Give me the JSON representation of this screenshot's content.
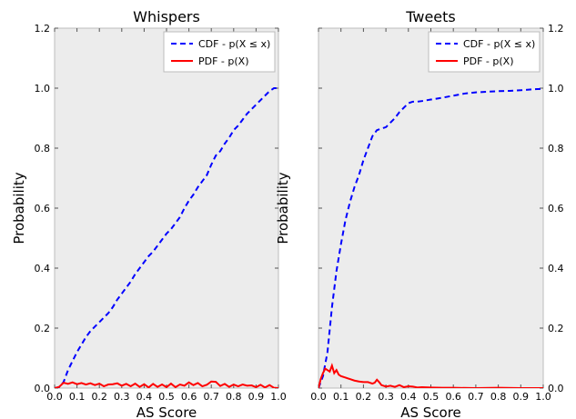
{
  "chart_data": [
    {
      "type": "line",
      "title": "Whispers",
      "xlabel": "AS Score",
      "ylabel": "Probability",
      "xlim": [
        0.0,
        1.0
      ],
      "ylim": [
        0.0,
        1.2
      ],
      "xticks": [
        "0.0",
        "0.1",
        "0.2",
        "0.3",
        "0.4",
        "0.5",
        "0.6",
        "0.7",
        "0.8",
        "0.9",
        "1.0"
      ],
      "yticks": [
        "0.0",
        "0.2",
        "0.4",
        "0.6",
        "0.8",
        "1.0",
        "1.2"
      ],
      "legend_position": "top-right",
      "grid": false,
      "series": [
        {
          "name": "CDF - p(X ≤ x)",
          "style": "dashed",
          "color": "#0000ff",
          "x": [
            0.0,
            0.02,
            0.04,
            0.06,
            0.08,
            0.1,
            0.12,
            0.14,
            0.16,
            0.18,
            0.2,
            0.22,
            0.24,
            0.26,
            0.28,
            0.3,
            0.32,
            0.34,
            0.36,
            0.38,
            0.4,
            0.42,
            0.44,
            0.46,
            0.48,
            0.5,
            0.52,
            0.54,
            0.56,
            0.58,
            0.6,
            0.62,
            0.64,
            0.66,
            0.68,
            0.7,
            0.72,
            0.74,
            0.76,
            0.78,
            0.8,
            0.82,
            0.84,
            0.86,
            0.88,
            0.9,
            0.92,
            0.94,
            0.96,
            0.98,
            1.0
          ],
          "y": [
            0.0,
            0.003,
            0.02,
            0.06,
            0.09,
            0.12,
            0.145,
            0.17,
            0.19,
            0.205,
            0.22,
            0.235,
            0.25,
            0.27,
            0.295,
            0.315,
            0.335,
            0.355,
            0.38,
            0.4,
            0.42,
            0.44,
            0.455,
            0.475,
            0.495,
            0.515,
            0.53,
            0.55,
            0.57,
            0.6,
            0.625,
            0.645,
            0.67,
            0.69,
            0.71,
            0.745,
            0.775,
            0.79,
            0.815,
            0.835,
            0.86,
            0.875,
            0.895,
            0.915,
            0.93,
            0.945,
            0.96,
            0.975,
            0.99,
            1.0,
            1.0
          ]
        },
        {
          "name": "PDF - p(X)",
          "style": "solid",
          "color": "#ff0000",
          "x": [
            0.0,
            0.02,
            0.04,
            0.06,
            0.08,
            0.1,
            0.12,
            0.14,
            0.16,
            0.18,
            0.2,
            0.22,
            0.24,
            0.26,
            0.28,
            0.3,
            0.32,
            0.34,
            0.36,
            0.38,
            0.4,
            0.42,
            0.44,
            0.46,
            0.48,
            0.5,
            0.52,
            0.54,
            0.56,
            0.58,
            0.6,
            0.62,
            0.64,
            0.66,
            0.68,
            0.7,
            0.72,
            0.74,
            0.76,
            0.78,
            0.8,
            0.82,
            0.84,
            0.86,
            0.88,
            0.9,
            0.92,
            0.94,
            0.96,
            0.98,
            1.0
          ],
          "y": [
            0.0,
            0.004,
            0.018,
            0.014,
            0.019,
            0.013,
            0.017,
            0.012,
            0.016,
            0.01,
            0.015,
            0.006,
            0.012,
            0.013,
            0.016,
            0.008,
            0.014,
            0.006,
            0.015,
            0.004,
            0.013,
            0.002,
            0.014,
            0.004,
            0.012,
            0.003,
            0.015,
            0.003,
            0.012,
            0.008,
            0.019,
            0.01,
            0.017,
            0.006,
            0.011,
            0.022,
            0.021,
            0.007,
            0.014,
            0.004,
            0.012,
            0.006,
            0.012,
            0.008,
            0.009,
            0.003,
            0.011,
            0.002,
            0.01,
            0.001,
            0.0
          ]
        }
      ]
    },
    {
      "type": "line",
      "title": "Tweets",
      "xlabel": "AS Score",
      "ylabel": "Probability",
      "xlim": [
        0.0,
        1.0
      ],
      "ylim": [
        0.0,
        1.2
      ],
      "xticks": [
        "0.0",
        "0.1",
        "0.2",
        "0.3",
        "0.4",
        "0.5",
        "0.6",
        "0.7",
        "0.8",
        "0.9",
        "1.0"
      ],
      "yticks": [
        "0.0",
        "0.2",
        "0.4",
        "0.6",
        "0.8",
        "1.0",
        "1.2"
      ],
      "legend_position": "top-right",
      "grid": false,
      "series": [
        {
          "name": "CDF - p(X ≤ x)",
          "style": "dashed",
          "color": "#0000ff",
          "x": [
            0.0,
            0.02,
            0.04,
            0.06,
            0.08,
            0.1,
            0.12,
            0.14,
            0.16,
            0.18,
            0.2,
            0.22,
            0.24,
            0.26,
            0.28,
            0.3,
            0.32,
            0.34,
            0.36,
            0.38,
            0.4,
            0.42,
            0.44,
            0.46,
            0.5,
            0.55,
            0.6,
            0.65,
            0.7,
            0.75,
            0.8,
            0.85,
            0.9,
            0.95,
            1.0
          ],
          "y": [
            0.0,
            0.04,
            0.12,
            0.27,
            0.39,
            0.48,
            0.56,
            0.62,
            0.67,
            0.71,
            0.76,
            0.8,
            0.84,
            0.86,
            0.865,
            0.87,
            0.885,
            0.9,
            0.92,
            0.935,
            0.95,
            0.955,
            0.955,
            0.957,
            0.962,
            0.968,
            0.975,
            0.982,
            0.986,
            0.988,
            0.99,
            0.991,
            0.993,
            0.996,
            0.998
          ]
        },
        {
          "name": "PDF - p(X)",
          "style": "solid",
          "color": "#ff0000",
          "x": [
            0.0,
            0.01,
            0.02,
            0.03,
            0.04,
            0.05,
            0.06,
            0.07,
            0.08,
            0.09,
            0.1,
            0.12,
            0.14,
            0.16,
            0.18,
            0.2,
            0.22,
            0.24,
            0.25,
            0.26,
            0.27,
            0.28,
            0.3,
            0.32,
            0.34,
            0.36,
            0.38,
            0.4,
            0.42,
            0.44,
            0.46,
            0.5,
            0.55,
            0.6,
            0.7,
            0.8,
            0.9,
            1.0
          ],
          "y": [
            0.0,
            0.03,
            0.05,
            0.065,
            0.06,
            0.055,
            0.075,
            0.05,
            0.06,
            0.045,
            0.04,
            0.035,
            0.03,
            0.025,
            0.022,
            0.02,
            0.02,
            0.015,
            0.018,
            0.028,
            0.02,
            0.01,
            0.005,
            0.008,
            0.004,
            0.01,
            0.003,
            0.006,
            0.005,
            0.002,
            0.003,
            0.002,
            0.001,
            0.001,
            0.0,
            0.001,
            0.0,
            0.0
          ]
        }
      ]
    }
  ]
}
